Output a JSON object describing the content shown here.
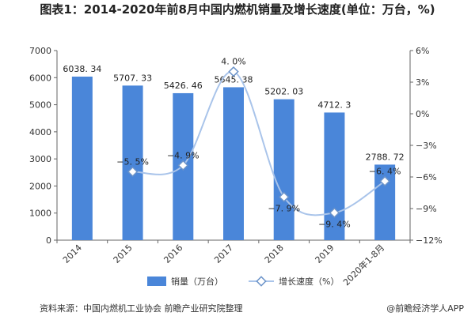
{
  "title": "图表1：2014-2020年前8月中国内燃机销量及增长速度(单位：万台，%)",
  "footer": {
    "source": "资料来源：中国内燃机工业协会 前瞻产业研究院整理",
    "brand": "@前瞻经济学人APP"
  },
  "colors": {
    "bar": "#4a86d9",
    "line": "#a9c4ea",
    "marker": "#6b93c9",
    "axis": "#666666"
  },
  "chart_data": {
    "type": "bar",
    "categories": [
      "2014",
      "2015",
      "2016",
      "2017",
      "2018",
      "2019",
      "2020年1-8月"
    ],
    "series": [
      {
        "name": "销量（万台）",
        "type": "bar",
        "axis": "left",
        "values": [
          6038.34,
          5707.33,
          5426.46,
          5645.38,
          5202.03,
          4712.3,
          2788.72
        ],
        "labels": [
          "6038. 34",
          "5707. 33",
          "5426. 46",
          "5645. 38",
          "5202. 03",
          "4712. 3",
          "2788. 72"
        ]
      },
      {
        "name": "增长速度（%）",
        "type": "line",
        "axis": "right",
        "values": [
          null,
          -5.5,
          -4.9,
          4.0,
          -7.9,
          -9.4,
          -6.4
        ],
        "labels": [
          "",
          "−5. 5%",
          "−4. 9%",
          "4. 0%",
          "−7. 9%",
          "−9. 4%",
          "−6. 4%"
        ]
      }
    ],
    "left_axis": {
      "min": 0,
      "max": 7000,
      "ticks": [
        "0",
        "1000",
        "2000",
        "3000",
        "4000",
        "5000",
        "6000",
        "7000"
      ]
    },
    "right_axis": {
      "min": -12,
      "max": 6,
      "ticks": [
        "−12%",
        "−9%",
        "−6%",
        "−3%",
        "0%",
        "3%",
        "6%"
      ]
    },
    "legend_position": "bottom-center",
    "grid": false
  }
}
